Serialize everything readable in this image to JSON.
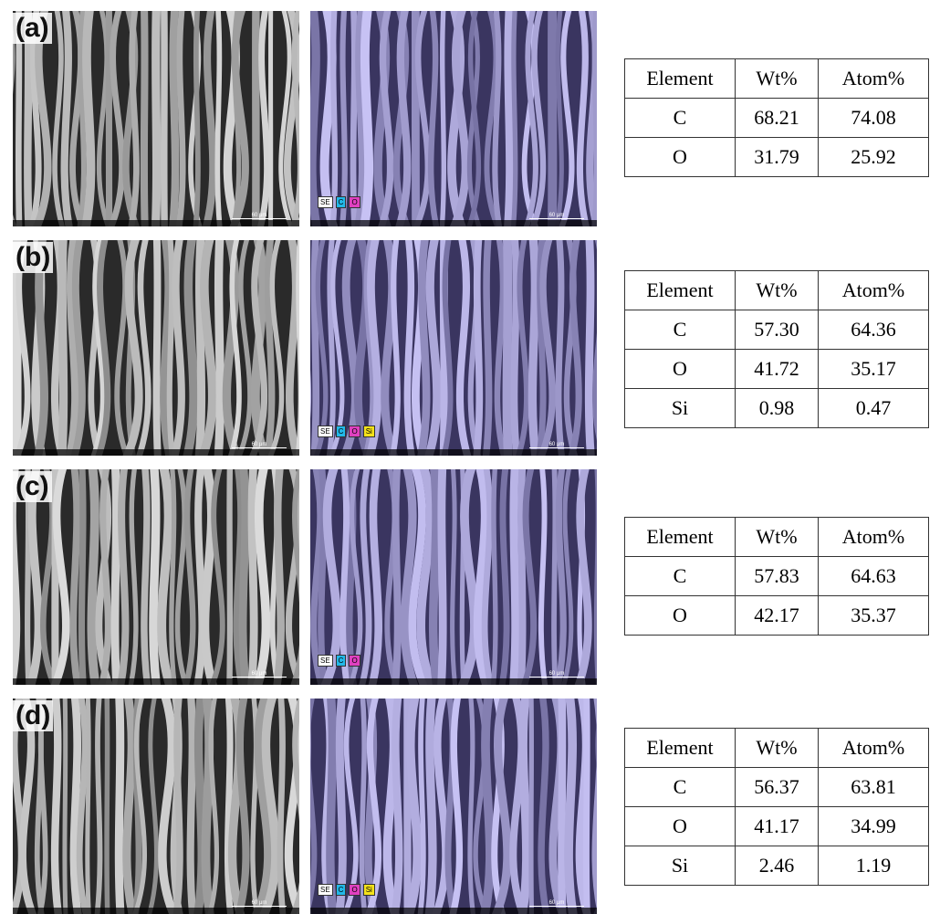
{
  "panels": [
    {
      "label": "(a)",
      "scale": "60 μm",
      "badges": [
        "SE",
        "C",
        "O"
      ],
      "table": {
        "header": [
          "Element",
          "Wt%",
          "Atom%"
        ],
        "rows": [
          [
            "C",
            "68.21",
            "74.08"
          ],
          [
            "O",
            "31.79",
            "25.92"
          ]
        ]
      }
    },
    {
      "label": "(b)",
      "scale": "60 μm",
      "badges": [
        "SE",
        "C",
        "O",
        "Si"
      ],
      "table": {
        "header": [
          "Element",
          "Wt%",
          "Atom%"
        ],
        "rows": [
          [
            "C",
            "57.30",
            "64.36"
          ],
          [
            "O",
            "41.72",
            "35.17"
          ],
          [
            "Si",
            "0.98",
            "0.47"
          ]
        ]
      }
    },
    {
      "label": "(c)",
      "scale": "60 μm",
      "badges": [
        "SE",
        "C",
        "O"
      ],
      "table": {
        "header": [
          "Element",
          "Wt%",
          "Atom%"
        ],
        "rows": [
          [
            "C",
            "57.83",
            "64.63"
          ],
          [
            "O",
            "42.17",
            "35.37"
          ]
        ]
      }
    },
    {
      "label": "(d)",
      "scale": "60 μm",
      "badges": [
        "SE",
        "C",
        "O",
        "Si"
      ],
      "table": {
        "header": [
          "Element",
          "Wt%",
          "Atom%"
        ],
        "rows": [
          [
            "C",
            "56.37",
            "63.81"
          ],
          [
            "O",
            "41.17",
            "34.99"
          ],
          [
            "Si",
            "2.46",
            "1.19"
          ]
        ]
      }
    }
  ]
}
